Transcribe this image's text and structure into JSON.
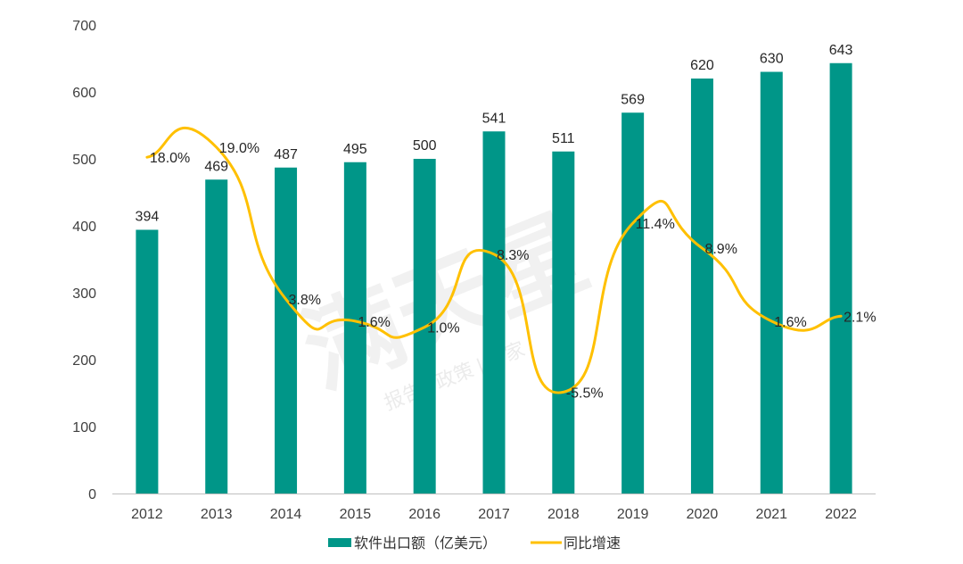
{
  "chart_data": {
    "type": "bar",
    "categories": [
      "2012",
      "2013",
      "2014",
      "2015",
      "2016",
      "2017",
      "2018",
      "2019",
      "2020",
      "2021",
      "2022"
    ],
    "ylim": [
      0,
      700
    ],
    "yticks": [
      0,
      100,
      200,
      300,
      400,
      500,
      600,
      700
    ],
    "grid": false,
    "legend_position": "bottom",
    "series": [
      {
        "name": "软件出口额（亿美元）",
        "type": "bar",
        "color": "#009688",
        "values": [
          394,
          469,
          487,
          495,
          500,
          541,
          511,
          569,
          620,
          630,
          643
        ],
        "labels": [
          "394",
          "469",
          "487",
          "495",
          "500",
          "541",
          "511",
          "569",
          "620",
          "630",
          "643"
        ]
      },
      {
        "name": "同比增速",
        "type": "line",
        "smooth": true,
        "color": "#FFC000",
        "values": [
          18.0,
          19.0,
          3.8,
          1.6,
          1.0,
          8.3,
          -5.5,
          11.4,
          8.9,
          1.6,
          2.1
        ],
        "labels": [
          "18.0%",
          "19.0%",
          "3.8%",
          "1.6%",
          "1.0%",
          "8.3%",
          "-5.5%",
          "11.4%",
          "8.9%",
          "1.6%",
          "2.1%"
        ],
        "value_unit": "%"
      }
    ]
  },
  "watermark": {
    "text": "满天星",
    "subtext": "报告 | 政策 | 专家"
  }
}
